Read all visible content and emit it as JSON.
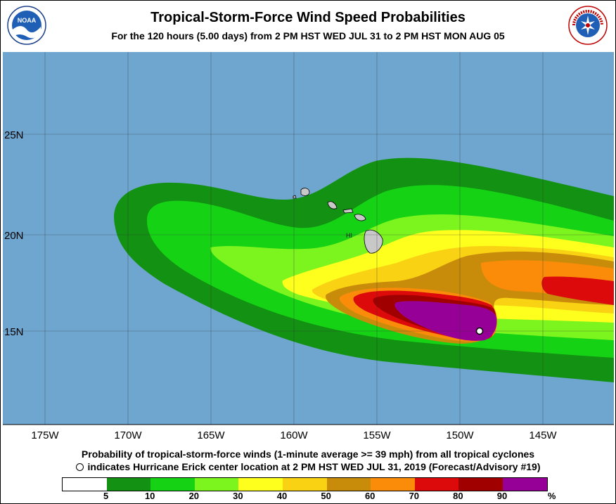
{
  "header": {
    "title": "Tropical-Storm-Force Wind Speed Probabilities",
    "subtitle": "For the 120 hours (5.00 days) from 2 PM HST WED JUL 31 to 2 PM HST MON AUG 05",
    "left_logo": {
      "icon": "noaa-logo-icon",
      "text": "NOAA"
    },
    "right_logo": {
      "icon": "nws-logo-icon",
      "text": "NATIONAL WEATHER SERVICE"
    }
  },
  "map": {
    "lat_labels": [
      "25N",
      "20N",
      "15N"
    ],
    "lon_labels": [
      "175W",
      "170W",
      "165W",
      "160W",
      "155W",
      "150W",
      "145W"
    ],
    "island_label": "HI",
    "ocean_color": "#6fa6d0",
    "storm_marker": {
      "icon": "storm-center-circle-icon"
    }
  },
  "footer": {
    "line1": "Probability of tropical-storm-force winds (1-minute average >= 39 mph) from all tropical cyclones",
    "line2": "indicates Hurricane Erick center location at 2 PM HST WED JUL 31, 2019 (Forecast/Advisory #19)"
  },
  "legend": {
    "colors": [
      "#ffffff",
      "#129112",
      "#15d215",
      "#7cf51e",
      "#ffff1e",
      "#fad214",
      "#c88c0a",
      "#fa8c0a",
      "#dc0a0a",
      "#a00000",
      "#960096"
    ],
    "labels": [
      "5",
      "10",
      "20",
      "30",
      "40",
      "50",
      "60",
      "70",
      "80",
      "90",
      "%"
    ]
  }
}
